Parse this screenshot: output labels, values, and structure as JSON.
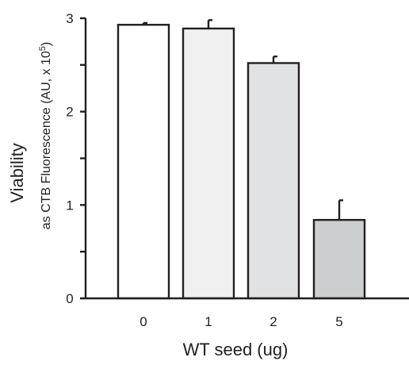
{
  "chart_data": {
    "type": "bar",
    "categories": [
      "0",
      "1",
      "2",
      "5"
    ],
    "values": [
      2.93,
      2.89,
      2.52,
      0.84
    ],
    "error_bars": [
      0.02,
      0.09,
      0.07,
      0.21
    ],
    "bar_colors": [
      "#ffffff",
      "#f0f0f0",
      "#e1e2e3",
      "#cdcecf"
    ],
    "xlabel": "WT seed (ug)",
    "ylabel": "Viability",
    "ylabel_sub": "as CTB Fluorescence (AU, x 10",
    "ylabel_sub_exp": "5",
    "ylabel_sub_close": ")",
    "ylim": [
      0,
      3
    ],
    "y_ticks": [
      "0",
      "1",
      "2",
      "3"
    ],
    "grid": false,
    "legend": "none"
  },
  "colors": {
    "axis": "#231f20",
    "bar_stroke": "#231f20",
    "text": "#231f20"
  }
}
